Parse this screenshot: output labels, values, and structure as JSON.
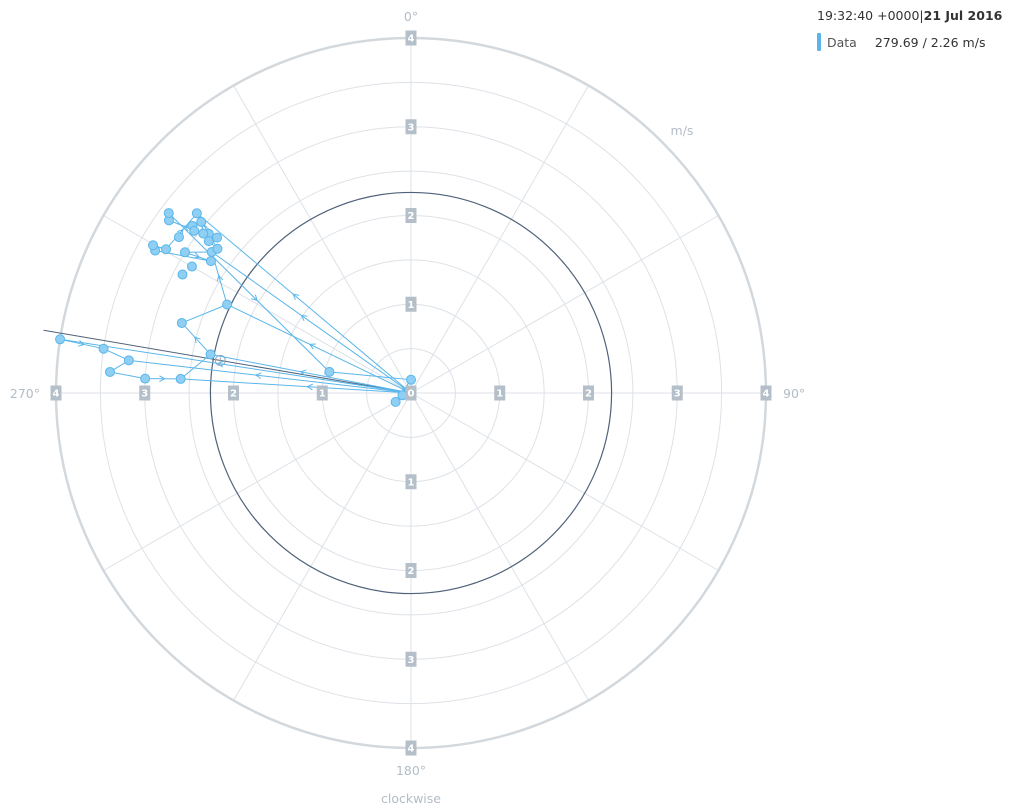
{
  "legend": {
    "time": "19:32:40 +0000",
    "separator": "|",
    "date": "21 Jul 2016",
    "series_name": "Data",
    "series_value": "279.69 / 2.26 m/s"
  },
  "colors": {
    "series": "#5ab6ea",
    "series_fill": "#8fcff3",
    "grid": "#dde2e7",
    "outer_ring": "#d3d8dd",
    "highlight_ring": "#50627a",
    "needle": "#50627a",
    "tick_box": "#b5bfc9",
    "label": "#b3bcc6"
  },
  "chart_data": {
    "type": "scatter",
    "coordinate_system": "polar",
    "direction": "clockwise",
    "unit_label": "m/s",
    "direction_label": "clockwise",
    "r_range": [
      0,
      4
    ],
    "r_ticks": [
      "1",
      "2",
      "3",
      "4"
    ],
    "center_tick": "0",
    "angle_labels": [
      {
        "angle": 0,
        "label": "0°"
      },
      {
        "angle": 90,
        "label": "90°"
      },
      {
        "angle": 180,
        "label": "180°"
      },
      {
        "angle": 270,
        "label": "270°"
      }
    ],
    "grid": true,
    "highlight_circle_r": 2.26,
    "cursor": {
      "angle": 279.69,
      "r": 2.26
    },
    "points": [
      {
        "angle": 278.7,
        "r": 4.0
      },
      {
        "angle": 278.2,
        "r": 3.5
      },
      {
        "angle": 276.6,
        "r": 3.2
      },
      {
        "angle": 274.0,
        "r": 3.4
      },
      {
        "angle": 273.1,
        "r": 3.0
      },
      {
        "angle": 273.5,
        "r": 2.6
      },
      {
        "angle": 280.9,
        "r": 2.3
      },
      {
        "angle": 287.0,
        "r": 2.7
      },
      {
        "angle": 295.7,
        "r": 2.3
      },
      {
        "angle": 297.4,
        "r": 2.9
      },
      {
        "angle": 300.0,
        "r": 2.85
      },
      {
        "angle": 303.4,
        "r": 2.7
      },
      {
        "angle": 301.9,
        "r": 3.0
      },
      {
        "angle": 300.4,
        "r": 3.2
      },
      {
        "angle": 299.1,
        "r": 3.3
      },
      {
        "angle": 299.8,
        "r": 3.35
      },
      {
        "angle": 305.3,
        "r": 2.75
      },
      {
        "angle": 303.9,
        "r": 3.15
      },
      {
        "angle": 307.4,
        "r": 3.1
      },
      {
        "angle": 306.8,
        "r": 3.05
      },
      {
        "angle": 308.2,
        "r": 2.9
      },
      {
        "angle": 306.7,
        "r": 2.72
      },
      {
        "angle": 306.9,
        "r": 2.85
      },
      {
        "angle": 308.7,
        "r": 2.8
      },
      {
        "angle": 309.2,
        "r": 3.05
      },
      {
        "angle": 307.5,
        "r": 2.95
      },
      {
        "angle": 305.5,
        "r": 3.35
      },
      {
        "angle": 306.6,
        "r": 3.4
      },
      {
        "angle": 310.0,
        "r": 3.15
      },
      {
        "angle": 284.5,
        "r": 0.95
      },
      {
        "angle": 0.0,
        "r": 0.15
      },
      {
        "angle": 240.0,
        "r": 0.2
      },
      {
        "angle": 255.0,
        "r": 0.1
      }
    ],
    "path_order": [
      0,
      1,
      2,
      3,
      4,
      5,
      6,
      7,
      8,
      16,
      12,
      11,
      14,
      15,
      13,
      28,
      21,
      22,
      23,
      24,
      25,
      26,
      27,
      29,
      30,
      31,
      32
    ]
  }
}
